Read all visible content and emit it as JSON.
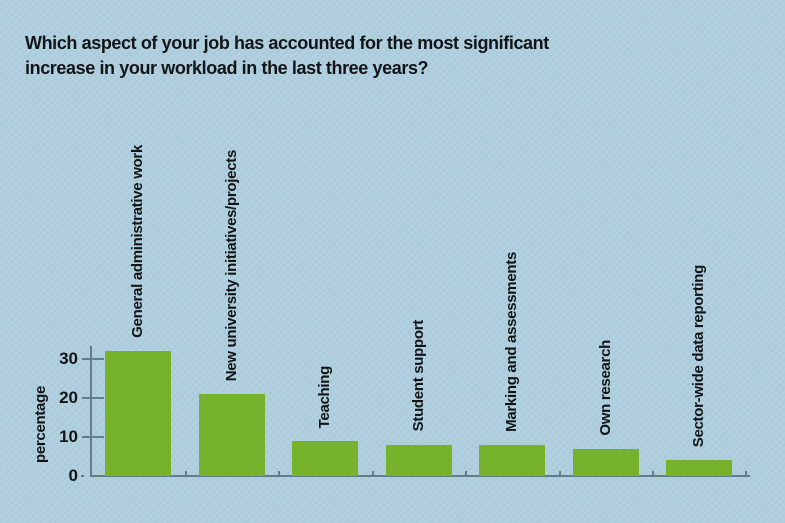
{
  "chart_data": {
    "type": "bar",
    "title_lines": [
      "Which aspect of your job has accounted for the most significant",
      "increase in your workload in the last three years?"
    ],
    "categories": [
      "General administrative work",
      "New university initiatives/projects",
      "Teaching",
      "Student support",
      "Marking and assessments",
      "Own research",
      "Sector-wide data reporting"
    ],
    "values": [
      32,
      21,
      9,
      8,
      8,
      7,
      4
    ],
    "ylabel": "percentage",
    "xlabel": "",
    "yticks": [
      0,
      10,
      20,
      30
    ],
    "ylim": [
      0,
      34
    ],
    "legend": "none",
    "grid": "off",
    "bar_color": "#76B22B",
    "background_color": "#AFCFDE",
    "axis_color": "#647D8B",
    "text_color": "#121517"
  }
}
